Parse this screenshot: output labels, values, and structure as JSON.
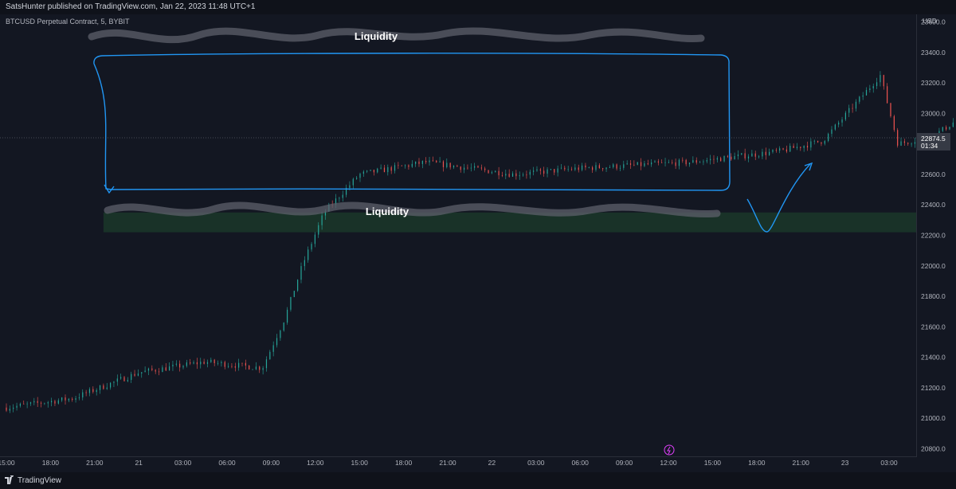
{
  "header": {
    "publisher_line": "SatsHunter published on TradingView.com, Jan 22, 2023 11:48 UTC+1"
  },
  "symbol_line": "BTCUSD Perpetual Contract, 5, BYBIT",
  "footer": {
    "brand": "TradingView"
  },
  "colors": {
    "background": "#131722",
    "up": "#26a69a",
    "down": "#ef5350",
    "drawing": "#2196f3",
    "zone": "#1b3a2a"
  },
  "annotations": {
    "top_liquidity": "Liquidity",
    "bottom_liquidity": "Liquidity"
  },
  "price_badge": {
    "price": "22874.5",
    "countdown": "01:34"
  },
  "chart_data": {
    "type": "candlestick",
    "title": "BTCUSD Perpetual Contract, 5, BYBIT",
    "currency": "USD",
    "y_ticks": [
      23600.0,
      23400.0,
      23200.0,
      23000.0,
      22800.0,
      22600.0,
      22400.0,
      22200.0,
      22000.0,
      21800.0,
      21600.0,
      21400.0,
      21200.0,
      21000.0,
      20800.0
    ],
    "x_ticks": [
      "15:00",
      "18:00",
      "21:00",
      "21",
      "03:00",
      "06:00",
      "09:00",
      "12:00",
      "15:00",
      "18:00",
      "21:00",
      "22",
      "03:00",
      "06:00",
      "09:00",
      "12:00",
      "15:00",
      "18:00",
      "21:00",
      "23",
      "03:00"
    ],
    "ylim": [
      20750,
      23650
    ],
    "grid": false,
    "price_path": [
      {
        "t": 0,
        "p": 21070
      },
      {
        "t": 1.5,
        "p": 21130
      },
      {
        "t": 3,
        "p": 21300
      },
      {
        "t": 4.5,
        "p": 21370
      },
      {
        "t": 5.8,
        "p": 21330
      },
      {
        "t": 6.3,
        "p": 21650
      },
      {
        "t": 6.7,
        "p": 22000
      },
      {
        "t": 7.2,
        "p": 22350
      },
      {
        "t": 8.0,
        "p": 22600
      },
      {
        "t": 9.5,
        "p": 22680
      },
      {
        "t": 11.5,
        "p": 22600
      },
      {
        "t": 13,
        "p": 22640
      },
      {
        "t": 15.5,
        "p": 22680
      },
      {
        "t": 17.5,
        "p": 22750
      },
      {
        "t": 18.5,
        "p": 22820
      },
      {
        "t": 19.8,
        "p": 23250
      },
      {
        "t": 20.2,
        "p": 22800
      },
      {
        "t": 21,
        "p": 22850
      },
      {
        "t": 22,
        "p": 23050
      },
      {
        "t": 23.5,
        "p": 22950
      },
      {
        "t": 25,
        "p": 23050
      },
      {
        "t": 26,
        "p": 23200
      },
      {
        "t": 27.3,
        "p": 23280
      },
      {
        "t": 28.3,
        "p": 23150
      },
      {
        "t": 29.5,
        "p": 23300
      },
      {
        "t": 31,
        "p": 23200
      },
      {
        "t": 32.3,
        "p": 22950
      },
      {
        "t": 33,
        "p": 22750
      },
      {
        "t": 34,
        "p": 22900
      },
      {
        "t": 35,
        "p": 22750
      },
      {
        "t": 36.5,
        "p": 22680
      },
      {
        "t": 37.5,
        "p": 22800
      },
      {
        "t": 38.5,
        "p": 22900
      },
      {
        "t": 40,
        "p": 22950
      },
      {
        "t": 41.5,
        "p": 22900
      },
      {
        "t": 43,
        "p": 22920
      },
      {
        "t": 44,
        "p": 22870
      }
    ],
    "last_price": 22874.5,
    "zones": [
      {
        "label": "",
        "from": 22220,
        "to": 22350
      }
    ]
  }
}
